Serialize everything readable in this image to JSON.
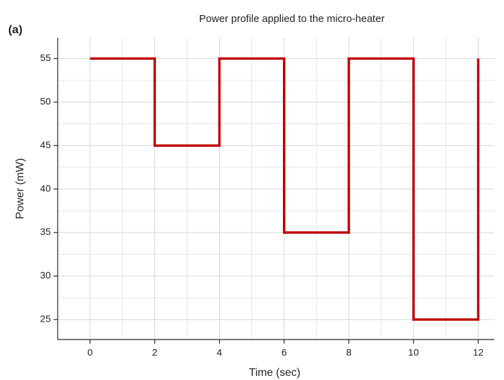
{
  "chart_data": {
    "type": "line",
    "title": "Power profile applied to the micro-heater",
    "annotation": "(a)",
    "x_label": "Time (sec)",
    "y_label": "Power (mW)",
    "x": [
      0,
      2,
      2,
      4,
      4,
      6,
      6,
      8,
      8,
      10,
      10,
      12,
      12
    ],
    "values": [
      55,
      55,
      45,
      45,
      55,
      55,
      35,
      35,
      55,
      55,
      25,
      25,
      55
    ],
    "color": "#c00000",
    "xlim": [
      -1,
      12.5
    ],
    "xticks": [
      0,
      2,
      4,
      6,
      8,
      10,
      12
    ],
    "ylim": [
      22.7,
      57.4
    ],
    "yticks": [
      25,
      30,
      35,
      40,
      45,
      50,
      55
    ],
    "grid": true
  }
}
